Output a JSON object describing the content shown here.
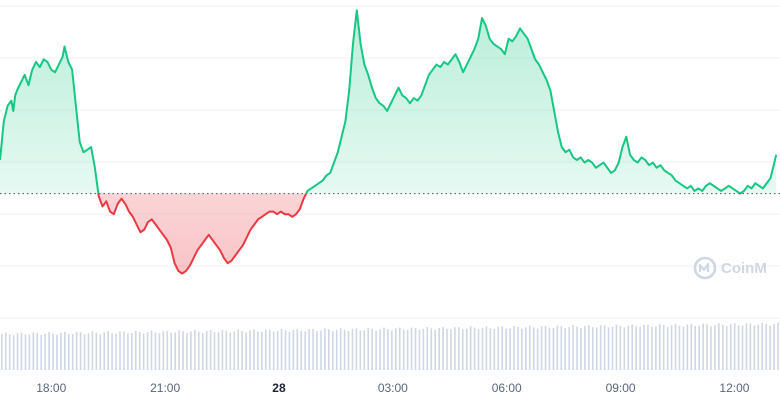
{
  "chart_data": {
    "type": "area",
    "baseline": 100,
    "colors": {
      "up": "#16c784",
      "down": "#ea3943",
      "grid": "#eff2f5",
      "baseline": "#5a6170",
      "volume": "#cfd6e4",
      "axis_text": "#58667e"
    },
    "grid": true,
    "x_ticks": [
      {
        "label": "18:00",
        "t": 3,
        "bold": false
      },
      {
        "label": "21:00",
        "t": 6,
        "bold": false
      },
      {
        "label": "28",
        "t": 9,
        "bold": true
      },
      {
        "label": "03:00",
        "t": 12,
        "bold": false
      },
      {
        "label": "06:00",
        "t": 15,
        "bold": false
      },
      {
        "label": "09:00",
        "t": 18,
        "bold": false
      },
      {
        "label": "12:00",
        "t": 21,
        "bold": false
      }
    ],
    "xlim": [
      1.65,
      22.2
    ],
    "ylim": [
      51,
      175
    ],
    "series": [
      {
        "values": [
          [
            1.65,
            113
          ],
          [
            1.75,
            128
          ],
          [
            1.85,
            134
          ],
          [
            1.95,
            136
          ],
          [
            2.0,
            132
          ],
          [
            2.05,
            138
          ],
          [
            2.1,
            140
          ],
          [
            2.2,
            143
          ],
          [
            2.3,
            146
          ],
          [
            2.4,
            142
          ],
          [
            2.5,
            148
          ],
          [
            2.6,
            151
          ],
          [
            2.7,
            149
          ],
          [
            2.8,
            152
          ],
          [
            2.9,
            151
          ],
          [
            3.0,
            148
          ],
          [
            3.1,
            147
          ],
          [
            3.2,
            150
          ],
          [
            3.3,
            153
          ],
          [
            3.35,
            157
          ],
          [
            3.45,
            151
          ],
          [
            3.55,
            148
          ],
          [
            3.65,
            134
          ],
          [
            3.75,
            120
          ],
          [
            3.85,
            116
          ],
          [
            3.95,
            117
          ],
          [
            4.05,
            118
          ],
          [
            4.15,
            110
          ],
          [
            4.25,
            99
          ],
          [
            4.35,
            95
          ],
          [
            4.45,
            97
          ],
          [
            4.55,
            93
          ],
          [
            4.65,
            92
          ],
          [
            4.75,
            96
          ],
          [
            4.85,
            98
          ],
          [
            4.95,
            96
          ],
          [
            5.05,
            93
          ],
          [
            5.15,
            91
          ],
          [
            5.25,
            88
          ],
          [
            5.35,
            85
          ],
          [
            5.45,
            86
          ],
          [
            5.55,
            89
          ],
          [
            5.65,
            90
          ],
          [
            5.75,
            88
          ],
          [
            5.85,
            86
          ],
          [
            5.95,
            84
          ],
          [
            6.05,
            82
          ],
          [
            6.15,
            79
          ],
          [
            6.25,
            73
          ],
          [
            6.35,
            70
          ],
          [
            6.45,
            69
          ],
          [
            6.55,
            70
          ],
          [
            6.65,
            72
          ],
          [
            6.75,
            75
          ],
          [
            6.85,
            78
          ],
          [
            6.95,
            80
          ],
          [
            7.05,
            82
          ],
          [
            7.15,
            84
          ],
          [
            7.25,
            82
          ],
          [
            7.35,
            80
          ],
          [
            7.45,
            78
          ],
          [
            7.55,
            75
          ],
          [
            7.65,
            73
          ],
          [
            7.75,
            74
          ],
          [
            7.85,
            76
          ],
          [
            7.95,
            78
          ],
          [
            8.05,
            80
          ],
          [
            8.15,
            83
          ],
          [
            8.25,
            86
          ],
          [
            8.35,
            88
          ],
          [
            8.45,
            90
          ],
          [
            8.55,
            91
          ],
          [
            8.65,
            92
          ],
          [
            8.75,
            93
          ],
          [
            8.85,
            93
          ],
          [
            8.95,
            92
          ],
          [
            9.05,
            93
          ],
          [
            9.15,
            92
          ],
          [
            9.25,
            92
          ],
          [
            9.35,
            91
          ],
          [
            9.45,
            92
          ],
          [
            9.55,
            94
          ],
          [
            9.65,
            98
          ],
          [
            9.75,
            101
          ],
          [
            9.85,
            102
          ],
          [
            9.95,
            103
          ],
          [
            10.05,
            104
          ],
          [
            10.15,
            105
          ],
          [
            10.25,
            107
          ],
          [
            10.35,
            108
          ],
          [
            10.45,
            112
          ],
          [
            10.55,
            116
          ],
          [
            10.65,
            122
          ],
          [
            10.75,
            128
          ],
          [
            10.85,
            140
          ],
          [
            10.95,
            158
          ],
          [
            11.05,
            171
          ],
          [
            11.15,
            158
          ],
          [
            11.25,
            150
          ],
          [
            11.35,
            146
          ],
          [
            11.45,
            141
          ],
          [
            11.55,
            137
          ],
          [
            11.65,
            135
          ],
          [
            11.75,
            134
          ],
          [
            11.85,
            132
          ],
          [
            11.95,
            135
          ],
          [
            12.05,
            138
          ],
          [
            12.15,
            141
          ],
          [
            12.25,
            138
          ],
          [
            12.35,
            137
          ],
          [
            12.45,
            135
          ],
          [
            12.55,
            137
          ],
          [
            12.65,
            136
          ],
          [
            12.75,
            138
          ],
          [
            12.85,
            142
          ],
          [
            12.95,
            146
          ],
          [
            13.05,
            148
          ],
          [
            13.15,
            150
          ],
          [
            13.25,
            149
          ],
          [
            13.35,
            151
          ],
          [
            13.45,
            150
          ],
          [
            13.55,
            152
          ],
          [
            13.65,
            154
          ],
          [
            13.75,
            151
          ],
          [
            13.85,
            147
          ],
          [
            13.95,
            150
          ],
          [
            14.05,
            153
          ],
          [
            14.15,
            156
          ],
          [
            14.25,
            160
          ],
          [
            14.35,
            168
          ],
          [
            14.45,
            165
          ],
          [
            14.55,
            160
          ],
          [
            14.65,
            158
          ],
          [
            14.75,
            157
          ],
          [
            14.85,
            156
          ],
          [
            14.95,
            154
          ],
          [
            15.05,
            160
          ],
          [
            15.15,
            159
          ],
          [
            15.25,
            161
          ],
          [
            15.35,
            164
          ],
          [
            15.45,
            162
          ],
          [
            15.55,
            160
          ],
          [
            15.65,
            156
          ],
          [
            15.75,
            152
          ],
          [
            15.85,
            150
          ],
          [
            15.95,
            147
          ],
          [
            16.05,
            144
          ],
          [
            16.15,
            140
          ],
          [
            16.25,
            132
          ],
          [
            16.35,
            124
          ],
          [
            16.45,
            118
          ],
          [
            16.55,
            116
          ],
          [
            16.65,
            117
          ],
          [
            16.75,
            114
          ],
          [
            16.85,
            113
          ],
          [
            16.95,
            114
          ],
          [
            17.05,
            112
          ],
          [
            17.15,
            113
          ],
          [
            17.25,
            112
          ],
          [
            17.35,
            110
          ],
          [
            17.45,
            111
          ],
          [
            17.55,
            112
          ],
          [
            17.65,
            110
          ],
          [
            17.75,
            108
          ],
          [
            17.85,
            109
          ],
          [
            17.95,
            112
          ],
          [
            18.05,
            118
          ],
          [
            18.15,
            122
          ],
          [
            18.25,
            115
          ],
          [
            18.35,
            113
          ],
          [
            18.45,
            112
          ],
          [
            18.55,
            114
          ],
          [
            18.65,
            113
          ],
          [
            18.75,
            111
          ],
          [
            18.85,
            112
          ],
          [
            18.95,
            110
          ],
          [
            19.05,
            111
          ],
          [
            19.15,
            109
          ],
          [
            19.25,
            108
          ],
          [
            19.35,
            107
          ],
          [
            19.45,
            105
          ],
          [
            19.55,
            104
          ],
          [
            19.65,
            103
          ],
          [
            19.75,
            102
          ],
          [
            19.85,
            103
          ],
          [
            19.95,
            101
          ],
          [
            20.05,
            102
          ],
          [
            20.15,
            101
          ],
          [
            20.25,
            103
          ],
          [
            20.35,
            104
          ],
          [
            20.45,
            103
          ],
          [
            20.55,
            102
          ],
          [
            20.65,
            101
          ],
          [
            20.75,
            102
          ],
          [
            20.85,
            103
          ],
          [
            20.95,
            102
          ],
          [
            21.05,
            101
          ],
          [
            21.15,
            100
          ],
          [
            21.25,
            101
          ],
          [
            21.35,
            103
          ],
          [
            21.45,
            102
          ],
          [
            21.55,
            104
          ],
          [
            21.65,
            103
          ],
          [
            21.75,
            102
          ],
          [
            21.85,
            104
          ],
          [
            21.95,
            106
          ],
          [
            22.05,
            112
          ],
          [
            22.1,
            115
          ]
        ]
      }
    ]
  },
  "watermark": {
    "text": "CoinM"
  }
}
